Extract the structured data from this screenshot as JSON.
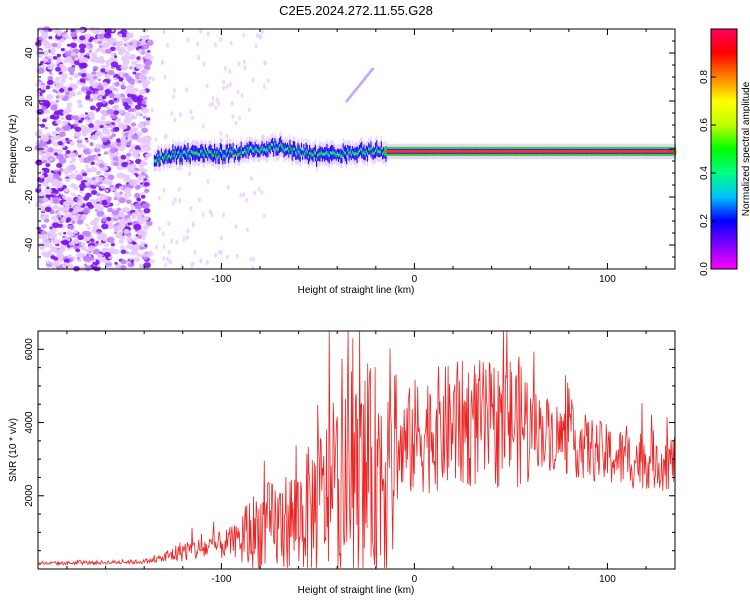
{
  "title": "C2E5.2024.272.11.55.G28",
  "chart_data": [
    {
      "type": "heatmap",
      "xlabel": "Height of straight line (km)",
      "ylabel": "Frequency (Hz)",
      "xlim": [
        -195,
        135
      ],
      "ylim": [
        -50,
        50
      ],
      "x_ticks": [
        -100,
        0,
        100
      ],
      "y_ticks": [
        -40,
        -20,
        0,
        20,
        40
      ],
      "colorbar": {
        "label": "Normalized spectral amplitude",
        "range": [
          0,
          1
        ],
        "ticks": [
          0.0,
          0.2,
          0.4,
          0.6,
          0.8
        ],
        "colormap": [
          "#ff00ff",
          "#8000ff",
          "#0000ff",
          "#00c0ff",
          "#00ff80",
          "#00ff00",
          "#c0ff00",
          "#ffff00",
          "#ff8000",
          "#ff0000",
          "#ff0060"
        ]
      },
      "ridge": {
        "x": [
          -135,
          -120,
          -100,
          -80,
          -70,
          -60,
          -50,
          -40,
          -30,
          -20,
          -10,
          0,
          20,
          50,
          100,
          135
        ],
        "frequency": [
          -4,
          -2,
          -2,
          0,
          1,
          -1,
          -3,
          -2,
          -1,
          -1,
          -1,
          -1,
          -1,
          -1,
          -1,
          -1
        ]
      },
      "noise_region_x": [
        -195,
        -137
      ]
    },
    {
      "type": "line",
      "xlabel": "Height of straight line (km)",
      "ylabel": "SNR (10 * v/v)",
      "xlim": [
        -195,
        135
      ],
      "ylim": [
        0,
        6500
      ],
      "x_ticks": [
        -100,
        0,
        100
      ],
      "y_ticks": [
        2000,
        4000,
        6000
      ],
      "color": "#ee2222",
      "series": [
        {
          "x": [
            -195,
            -170,
            -140,
            -130,
            -120,
            -110,
            -100,
            -90,
            -80,
            -70,
            -60,
            -50,
            -40,
            -30,
            -20,
            -10,
            0,
            10,
            20,
            30,
            40,
            50,
            60,
            70,
            80,
            90,
            100,
            110,
            120,
            135
          ],
          "values": [
            150,
            170,
            200,
            300,
            500,
            550,
            650,
            800,
            1100,
            1200,
            1400,
            1800,
            2200,
            2400,
            2700,
            3000,
            3600,
            3800,
            3900,
            4000,
            3900,
            4100,
            3900,
            3700,
            3500,
            3300,
            3100,
            3000,
            3000,
            2900
          ]
        }
      ]
    }
  ]
}
